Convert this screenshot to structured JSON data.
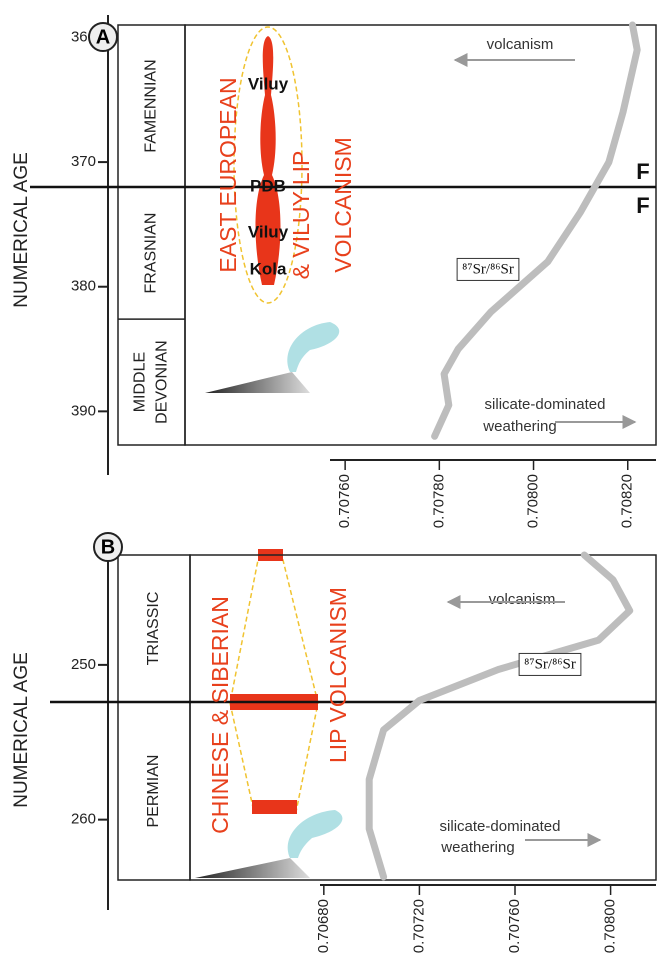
{
  "chart_data": [
    {
      "type": "line",
      "panel_label": "A",
      "y_label": "NUMERICAL AGE",
      "ylim": [
        359,
        392.7
      ],
      "yticks": [
        360,
        370,
        380,
        390
      ],
      "xlim": [
        0.70726,
        0.70826
      ],
      "xticks": [
        {
          "value": 0.7076,
          "label": "0.70760"
        },
        {
          "value": 0.7078,
          "label": "0.70780"
        },
        {
          "value": 0.708,
          "label": "0.70800"
        },
        {
          "value": 0.7082,
          "label": "0.70820"
        }
      ],
      "stages": [
        [
          "FAMENNIAN"
        ],
        [
          "FRASNIAN"
        ],
        [
          "MIDDLE",
          "DEVONIAN"
        ]
      ],
      "stage_boundaries": [
        372,
        382.6
      ],
      "boundary_labels": [
        "F",
        "F"
      ],
      "red_labels": [
        "EAST EUROPEAN",
        "& VILUY LIP",
        "VOLCANISM"
      ],
      "event_labels": [
        "Viluy",
        "PDB",
        "Viluy",
        "Kola"
      ],
      "volcanism_label": "volcanism",
      "weathering_label": [
        "silicate-dominated",
        "weathering"
      ],
      "series": [
        {
          "name": "⁸⁷Sr/⁸⁶Sr",
          "color": "#bdbdbd",
          "x": [
            359,
            361,
            366,
            370,
            374,
            378,
            382,
            385,
            387,
            389.5,
            392
          ],
          "values": [
            0.70821,
            0.70822,
            0.70819,
            0.70816,
            0.7081,
            0.70803,
            0.70791,
            0.70784,
            0.70781,
            0.70782,
            0.70779
          ]
        }
      ]
    },
    {
      "type": "line",
      "panel_label": "B",
      "y_label": "NUMERICAL AGE",
      "ylim": [
        242.9,
        263.9
      ],
      "yticks": [
        250,
        260
      ],
      "xlim": [
        0.70624,
        0.70819
      ],
      "xticks": [
        {
          "value": 0.7068,
          "label": "0.70680"
        },
        {
          "value": 0.7072,
          "label": "0.70720"
        },
        {
          "value": 0.7076,
          "label": "0.70760"
        },
        {
          "value": 0.708,
          "label": "0.70800"
        }
      ],
      "stages": [
        [
          "TRIASSIC"
        ],
        [
          "PERMIAN"
        ]
      ],
      "stage_boundaries": [
        252.4
      ],
      "red_labels": [
        "CHINESE & SIBERIAN",
        "LIP VOLCANISM"
      ],
      "volcanism_label": "volcanism",
      "weathering_label": [
        "silicate-dominated",
        "weathering"
      ],
      "series": [
        {
          "name": "⁸⁷Sr/⁸⁶Sr",
          "color": "#bdbdbd",
          "x": [
            242.9,
            244.5,
            246.5,
            248.4,
            250.3,
            252.3,
            254.2,
            257.4,
            260.6,
            263.7
          ],
          "values": [
            0.70789,
            0.70801,
            0.70808,
            0.70795,
            0.70753,
            0.7072,
            0.70705,
            0.70699,
            0.70699,
            0.70705
          ]
        }
      ]
    }
  ]
}
